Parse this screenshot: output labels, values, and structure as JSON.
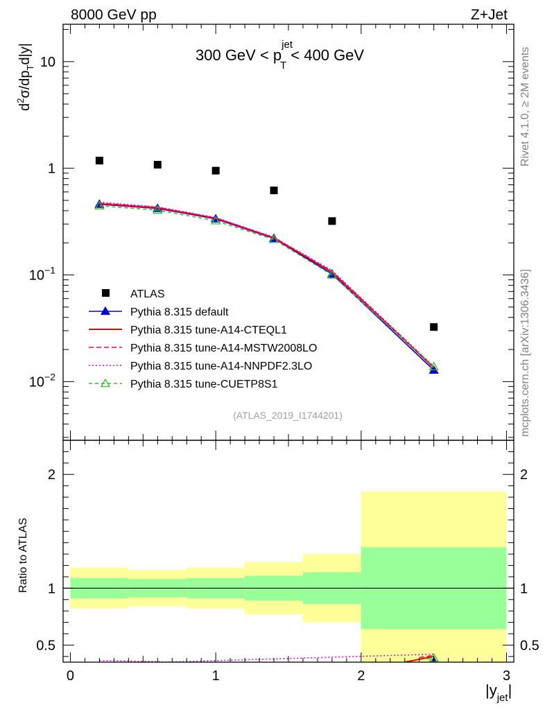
{
  "header": {
    "left": "8000 GeV pp",
    "right": "Z+Jet"
  },
  "side_labels": {
    "rivet": "Rivet 4.1.0, ≥ 2M events",
    "mcplots": "mcplots.cern.ch [arXiv:1306.3436]"
  },
  "colors": {
    "atlas": "#000000",
    "default": "#0000cc",
    "cteql1": "#ee0000",
    "mstw": "#ee0055",
    "nnpdf": "#dd00dd",
    "cuetp8s1": "#33bb33",
    "band_inner": "#99ff99",
    "band_outer": "#ffff99"
  },
  "chart_data": {
    "type": "line",
    "analysis_tag": "(ATLAS_2019_I1744201)",
    "title": {
      "prefix": "300 GeV < p",
      "sup": "jet",
      "sub": "T",
      "suffix": " < 400 GeV"
    },
    "ylabel_main": "d²σ/dp_T d|y|",
    "ylabel_ratio": "Ratio to ATLAS",
    "xlabel": {
      "main": "|y",
      "sub": "jet",
      "close": "|"
    },
    "xlim": [
      -0.05,
      3.05
    ],
    "ylim_main_log10": [
      -2.55,
      1.35
    ],
    "ylim_ratio": [
      0.35,
      2.3
    ],
    "x_ticks": [
      "0",
      "1",
      "2",
      "3"
    ],
    "y_ticks_main": [
      {
        "value": 10,
        "label": "10"
      },
      {
        "value": 1,
        "label": "1"
      },
      {
        "value": 0.1,
        "base": "10",
        "exp": "−1"
      },
      {
        "value": 0.01,
        "base": "10",
        "exp": "−2"
      }
    ],
    "y_ticks_ratio": [
      {
        "value": 0.5,
        "label": "0.5"
      },
      {
        "value": 1,
        "label": "1"
      },
      {
        "value": 2,
        "label": "2"
      }
    ],
    "x_centers": [
      0.2,
      0.6,
      1.0,
      1.4,
      1.8,
      2.5
    ],
    "bins": [
      [
        0.0,
        0.4
      ],
      [
        0.4,
        0.8
      ],
      [
        0.8,
        1.2
      ],
      [
        1.2,
        1.6
      ],
      [
        1.6,
        2.0
      ],
      [
        2.0,
        3.0
      ]
    ],
    "series": [
      {
        "name": "ATLAS",
        "style": "data",
        "color_key": "atlas",
        "values": [
          1.18,
          1.08,
          0.95,
          0.62,
          0.32,
          0.0325
        ]
      },
      {
        "name": "Pythia 8.315 default",
        "style": "line-triangle",
        "color_key": "default",
        "values": [
          0.46,
          0.42,
          0.335,
          0.22,
          0.102,
          0.0128
        ]
      },
      {
        "name": "Pythia 8.315 tune-A14-CTEQL1",
        "style": "line",
        "color_key": "cteql1",
        "values": [
          0.465,
          0.425,
          0.34,
          0.222,
          0.106,
          0.0135
        ]
      },
      {
        "name": "Pythia 8.315 tune-A14-MSTW2008LO",
        "style": "dashed",
        "color_key": "mstw",
        "values": [
          0.47,
          0.43,
          0.342,
          0.224,
          0.108,
          0.0137
        ]
      },
      {
        "name": "Pythia 8.315 tune-A14-NNPDF2.3LO",
        "style": "dotted",
        "color_key": "nnpdf",
        "values": [
          0.48,
          0.435,
          0.345,
          0.226,
          0.11,
          0.0139
        ]
      },
      {
        "name": "Pythia 8.315 tune-CUETP8S1",
        "style": "dashed-open-triangle",
        "color_key": "cuetp8s1",
        "values": [
          0.445,
          0.405,
          0.322,
          0.215,
          0.1,
          0.0138
        ]
      }
    ],
    "ratio_band_inner": [
      [
        0.91,
        1.09
      ],
      [
        0.92,
        1.08
      ],
      [
        0.91,
        1.09
      ],
      [
        0.89,
        1.11
      ],
      [
        0.86,
        1.14
      ],
      [
        0.64,
        1.36
      ]
    ],
    "ratio_band_outer": [
      [
        0.82,
        1.18
      ],
      [
        0.84,
        1.16
      ],
      [
        0.82,
        1.18
      ],
      [
        0.77,
        1.23
      ],
      [
        0.7,
        1.3
      ],
      [
        0.35,
        1.85
      ]
    ],
    "ratio_series": [
      {
        "name": "Pythia 8.315 default",
        "color_key": "default",
        "style": "line-triangle",
        "x": [
          2.5
        ],
        "values": [
          0.355
        ]
      },
      {
        "name": "Pythia 8.315 tune-A14-CTEQL1",
        "color_key": "cteql1",
        "style": "line",
        "x": [
          2.3,
          2.5
        ],
        "values": [
          0.35,
          0.4
        ]
      },
      {
        "name": "Pythia 8.315 tune-A14-MSTW2008LO",
        "color_key": "mstw",
        "style": "dashed",
        "x": [
          2.4,
          2.5
        ],
        "values": [
          0.39,
          0.41
        ]
      },
      {
        "name": "Pythia 8.315 tune-A14-NNPDF2.3LO",
        "color_key": "nnpdf",
        "style": "dotted",
        "x": [
          0.2,
          0.6,
          0.65,
          2.5
        ],
        "values": [
          0.365,
          0.355,
          0.35,
          0.42
        ]
      },
      {
        "name": "Pythia 8.315 tune-CUETP8S1",
        "color_key": "cuetp8s1",
        "style": "dashed-open-triangle",
        "x": [
          2.45,
          2.5
        ],
        "values": [
          0.38,
          0.385
        ]
      }
    ],
    "ratio_reference": 1
  }
}
